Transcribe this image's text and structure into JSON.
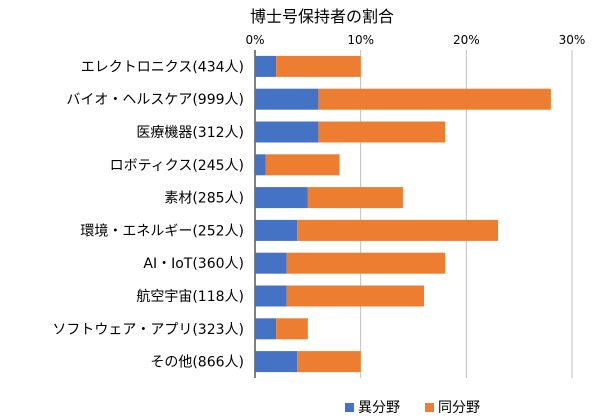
{
  "chart_data": {
    "type": "bar",
    "orientation": "horizontal",
    "stacked": true,
    "title": "博士号保持者の割合",
    "categories": [
      "エレクトロニクス(434人)",
      "バイオ・ヘルスケア(999人)",
      "医療機器(312人)",
      "ロボティクス(245人)",
      "素材(285人)",
      "環境・エネルギー(252人)",
      "AI・IoT(360人)",
      "航空宇宙(118人)",
      "ソフトウェア・アプリ(323人)",
      "その他(866人)"
    ],
    "series": [
      {
        "name": "異分野",
        "color": "#4472C4",
        "values": [
          2,
          6,
          6,
          1,
          5,
          4,
          3,
          3,
          2,
          4
        ]
      },
      {
        "name": "同分野",
        "color": "#ED7D31",
        "values": [
          8,
          22,
          12,
          7,
          9,
          19,
          15,
          13,
          3,
          6
        ]
      }
    ],
    "xlim": [
      0,
      30
    ],
    "xticks": [
      0,
      10,
      20,
      30
    ],
    "xtick_labels": [
      "0%",
      "10%",
      "20%",
      "30%"
    ],
    "grid": true,
    "gridline_color": "#bfbfbf",
    "legend_position": "bottom"
  }
}
